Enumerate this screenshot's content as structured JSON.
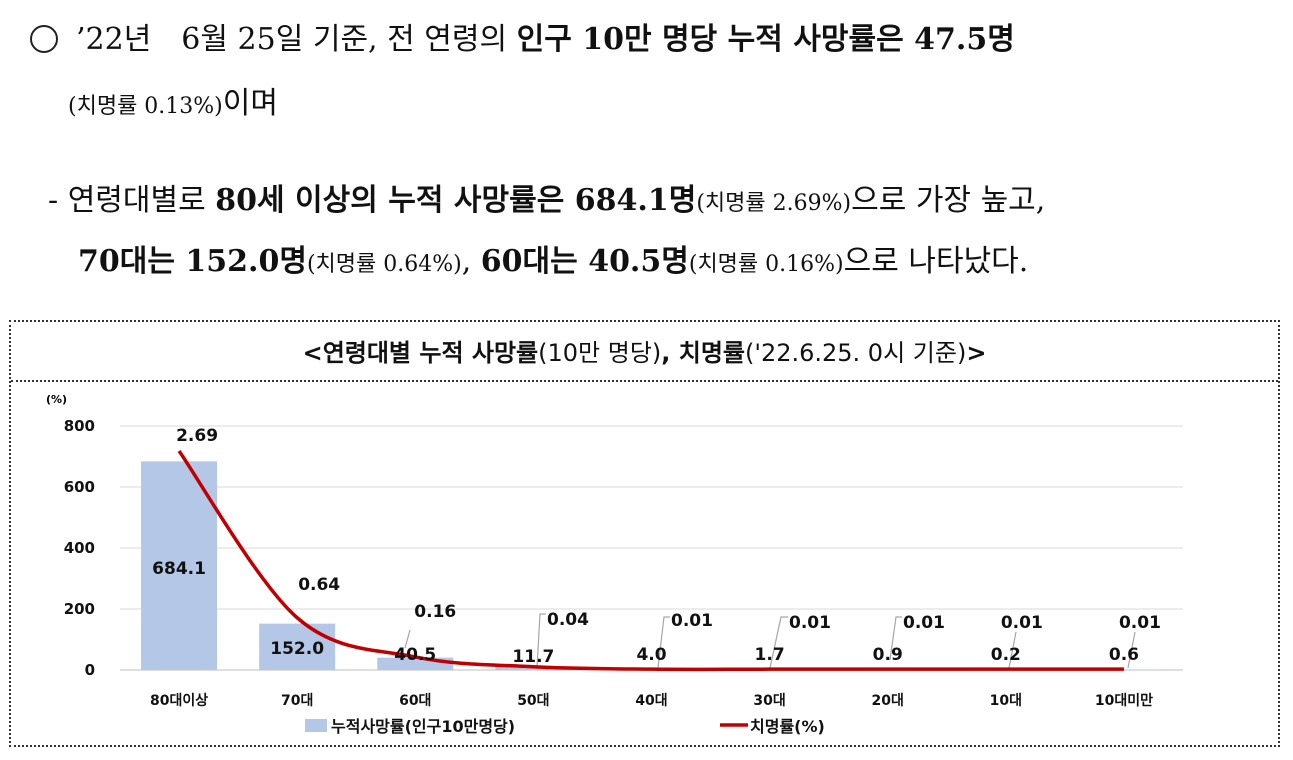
{
  "text": {
    "bullet_mark": "○",
    "line1_a": "’22년　6월 25일 기준, 전 연령의 ",
    "line1_b": "인구 10만 명당 누적 사망률은 47.5명",
    "line2_a": "(치명률 0.13%)",
    "line2_b": "이며",
    "sub1_dash": "- ",
    "sub1_a": "연령대별로 ",
    "sub1_b": "80세 이상의 누적 사망률은 684.1명",
    "sub1_c": "(치명률 2.69%)",
    "sub1_d": "으로 가장 높고,",
    "sub2_a": "70대는 152.0명",
    "sub2_b": "(치명률 0.64%)",
    "sub2_c": ", ",
    "sub2_d": "60대는 40.5명",
    "sub2_e": "(치명률 0.16%)",
    "sub2_f": "으로 나타났다."
  },
  "chart_title": {
    "a": "<연령대별 누적 사망률",
    "b": "(10만 명당)",
    "c": ", 치명률",
    "d": "('22.6.25. 0시 기준)",
    "e": ">"
  },
  "chart_data": {
    "type": "bar",
    "categories": [
      "80대이상",
      "70대",
      "60대",
      "50대",
      "40대",
      "30대",
      "20대",
      "10대",
      "10대미만"
    ],
    "y_unit": "(%)",
    "ylim": [
      0,
      800
    ],
    "yticks": [
      0,
      200,
      400,
      600,
      800
    ],
    "series": [
      {
        "name": "누적사망률(인구10만명당)",
        "type": "bar",
        "values": [
          684.1,
          152.0,
          40.5,
          11.7,
          4.0,
          1.7,
          0.9,
          0.2,
          0.6
        ],
        "labels": [
          "684.1",
          "152.0",
          "40.5",
          "11.7",
          "4.0",
          "1.7",
          "0.9",
          "0.2",
          "0.6"
        ],
        "color": "#b4c7e7"
      },
      {
        "name": "치명률(%)",
        "type": "line",
        "values": [
          2.69,
          0.64,
          0.16,
          0.04,
          0.01,
          0.01,
          0.01,
          0.01,
          0.01
        ],
        "labels": [
          "2.69",
          "0.64",
          "0.16",
          "0.04",
          "0.01",
          "0.01",
          "0.01",
          "0.01",
          "0.01"
        ],
        "color": "#c00000"
      }
    ],
    "grid": true,
    "legend": "bottom"
  }
}
